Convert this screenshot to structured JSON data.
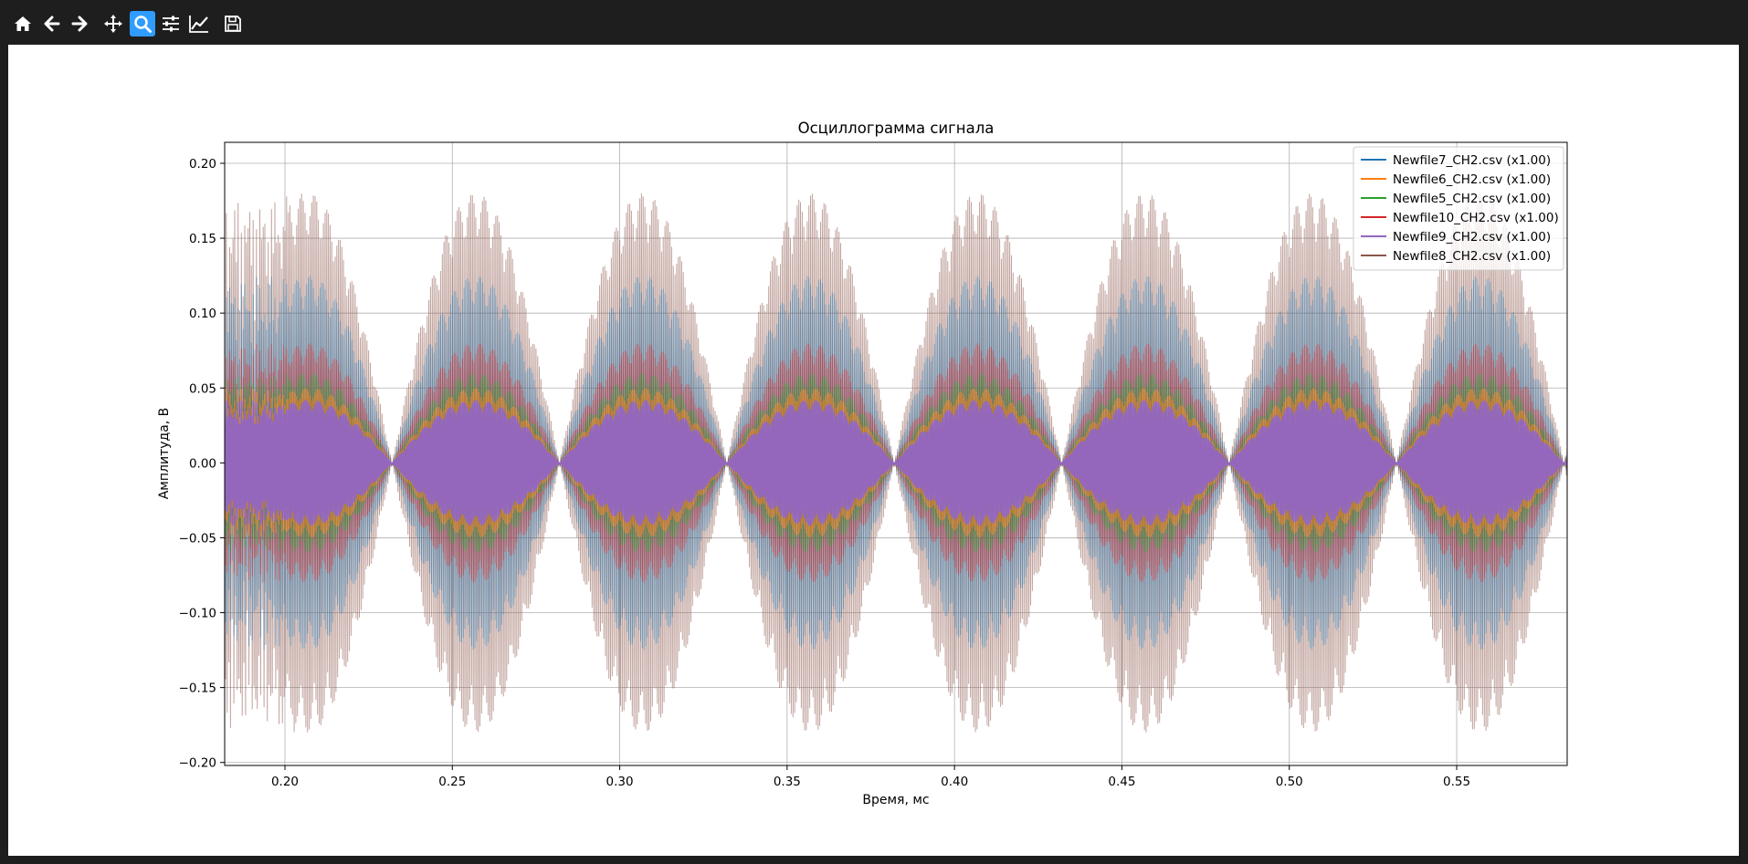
{
  "toolbar": {
    "buttons": [
      {
        "icon": "home-icon",
        "active": false
      },
      {
        "icon": "back-arrow-icon",
        "active": false
      },
      {
        "icon": "forward-arrow-icon",
        "active": false
      },
      {
        "icon": "pan-move-icon",
        "active": false
      },
      {
        "icon": "zoom-magnifier-icon",
        "active": true
      },
      {
        "icon": "configure-subplots-icon",
        "active": false
      },
      {
        "icon": "edit-axis-icon",
        "active": false
      },
      {
        "icon": "save-disk-icon",
        "active": false
      }
    ]
  },
  "chart_data": {
    "type": "line",
    "title": "Осциллограмма сигнала",
    "xlabel": "Время, мс",
    "ylabel": "Амплитуда, В",
    "xlim": [
      0.182,
      0.583
    ],
    "ylim": [
      -0.202,
      0.214
    ],
    "xticks": [
      0.2,
      0.25,
      0.3,
      0.35,
      0.4,
      0.45,
      0.5,
      0.55
    ],
    "xtick_labels": [
      "0.20",
      "0.25",
      "0.30",
      "0.35",
      "0.40",
      "0.45",
      "0.50",
      "0.55"
    ],
    "yticks": [
      0.2,
      0.15,
      0.1,
      0.05,
      0.0,
      -0.05,
      -0.1,
      -0.15,
      -0.2
    ],
    "ytick_labels": [
      "0.20",
      "0.15",
      "0.10",
      "0.05",
      "0.00",
      "−0.05",
      "−0.10",
      "−0.15",
      "−0.20"
    ],
    "grid": true,
    "legend_position": "top-right",
    "envelope_period_ms": 0.05,
    "envelope_first_node_ms": 0.232,
    "series": [
      {
        "name": "Newfile7_CH2.csv (x1.00)",
        "color": "#1f77b4",
        "peak_amplitude": 0.125
      },
      {
        "name": "Newfile6_CH2.csv (x1.00)",
        "color": "#ff7f0e",
        "peak_amplitude": 0.05
      },
      {
        "name": "Newfile5_CH2.csv (x1.00)",
        "color": "#2ca02c",
        "peak_amplitude": 0.06
      },
      {
        "name": "Newfile10_CH2.csv (x1.00)",
        "color": "#d62728",
        "peak_amplitude": 0.08
      },
      {
        "name": "Newfile9_CH2.csv (x1.00)",
        "color": "#9467bd",
        "peak_amplitude": 0.042
      },
      {
        "name": "Newfile8_CH2.csv (x1.00)",
        "color": "#8c564b",
        "peak_amplitude": 0.18
      }
    ]
  }
}
